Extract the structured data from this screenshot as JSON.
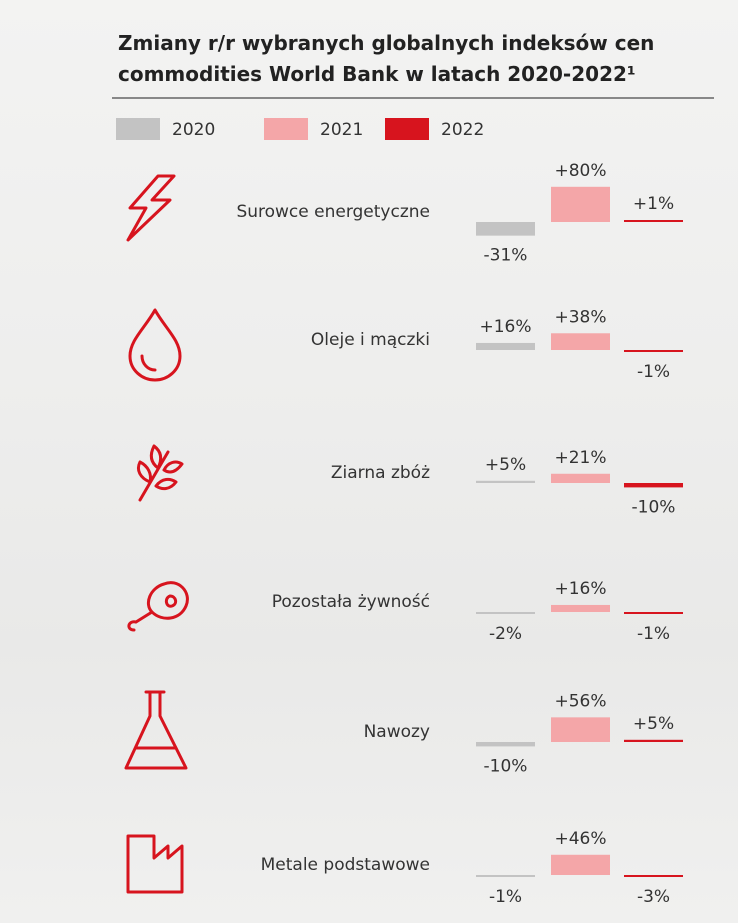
{
  "chart_data": {
    "type": "bar",
    "title": "Zmiany r/r wybranych globalnych indeksów cen commodities World Bank w latach 2020-2022¹",
    "categories": [
      "Surowce energetyczne",
      "Oleje i mączki",
      "Ziarna zbóż",
      "Pozostała żywność",
      "Nawozy",
      "Metale podstawowe"
    ],
    "series": [
      {
        "name": "2020",
        "color": "#c3c3c3",
        "values": [
          -31,
          16,
          5,
          -2,
          -10,
          -1
        ],
        "value_labels": [
          "-31%",
          "+16%",
          "+5%",
          "-2%",
          "-10%",
          "-1%"
        ]
      },
      {
        "name": "2021",
        "color": "#f4a6a8",
        "values": [
          80,
          38,
          21,
          16,
          56,
          46
        ],
        "value_labels": [
          "+80%",
          "+38%",
          "+21%",
          "+16%",
          "+56%",
          "+46%"
        ]
      },
      {
        "name": "2022",
        "color": "#d7141e",
        "values": [
          1,
          -1,
          -10,
          -1,
          5,
          -3
        ],
        "value_labels": [
          "+1%",
          "-1%",
          "-10%",
          "-1%",
          "+5%",
          "-3%"
        ]
      }
    ]
  }
}
